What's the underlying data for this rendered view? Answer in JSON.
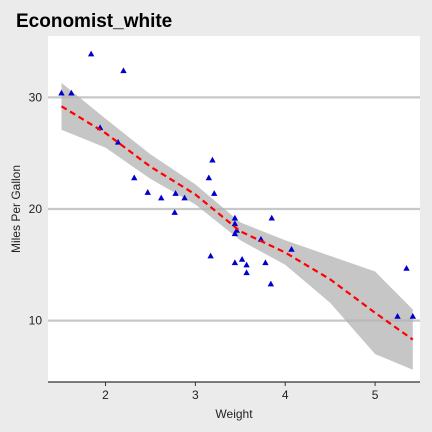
{
  "chart_data": {
    "type": "scatter",
    "title": "Economist_white",
    "xlabel": "Weight",
    "ylabel": "Miles Per Gallon",
    "xlim": [
      1.36,
      5.5
    ],
    "ylim": [
      4.5,
      35.5
    ],
    "xticks": [
      2,
      3,
      4,
      5
    ],
    "yticks": [
      10,
      20,
      30
    ],
    "grid": "horizontal",
    "series": [
      {
        "points": [
          [
            1.51,
            30.4
          ],
          [
            1.62,
            30.4
          ],
          [
            1.84,
            33.9
          ],
          [
            1.94,
            27.3
          ],
          [
            2.14,
            26.0
          ],
          [
            2.2,
            32.4
          ],
          [
            2.32,
            22.8
          ],
          [
            2.47,
            21.5
          ],
          [
            2.62,
            21.0
          ],
          [
            2.77,
            19.7
          ],
          [
            2.78,
            21.4
          ],
          [
            2.88,
            21.0
          ],
          [
            3.15,
            22.8
          ],
          [
            3.17,
            15.8
          ],
          [
            3.19,
            24.4
          ],
          [
            3.21,
            21.4
          ],
          [
            3.44,
            18.7
          ],
          [
            3.44,
            19.2
          ],
          [
            3.44,
            17.8
          ],
          [
            3.44,
            15.2
          ],
          [
            3.46,
            18.1
          ],
          [
            3.52,
            15.5
          ],
          [
            3.57,
            14.3
          ],
          [
            3.57,
            15.0
          ],
          [
            3.73,
            17.3
          ],
          [
            3.78,
            15.2
          ],
          [
            3.84,
            13.3
          ],
          [
            3.85,
            19.2
          ],
          [
            4.07,
            16.4
          ],
          [
            5.25,
            10.4
          ],
          [
            5.35,
            14.7
          ],
          [
            5.42,
            10.4
          ]
        ]
      }
    ],
    "smooth": {
      "x": [
        1.51,
        2.0,
        2.5,
        3.0,
        3.5,
        4.0,
        4.5,
        5.0,
        5.42
      ],
      "y": [
        29.2,
        26.8,
        23.8,
        21.3,
        18.0,
        16.1,
        13.7,
        10.7,
        8.3
      ],
      "lower": [
        27.1,
        25.5,
        22.7,
        20.4,
        17.2,
        15.0,
        11.6,
        7.0,
        5.6
      ],
      "upper": [
        31.3,
        28.1,
        24.9,
        22.2,
        18.8,
        17.2,
        15.8,
        14.4,
        11.0
      ]
    },
    "colors": {
      "background": "#ebebeb",
      "panel": "#ffffff",
      "gridline": "#c8c8c8",
      "points": "#0000cc",
      "smooth_line": "#ff0000",
      "ribbon": "#b3b3b3"
    }
  }
}
